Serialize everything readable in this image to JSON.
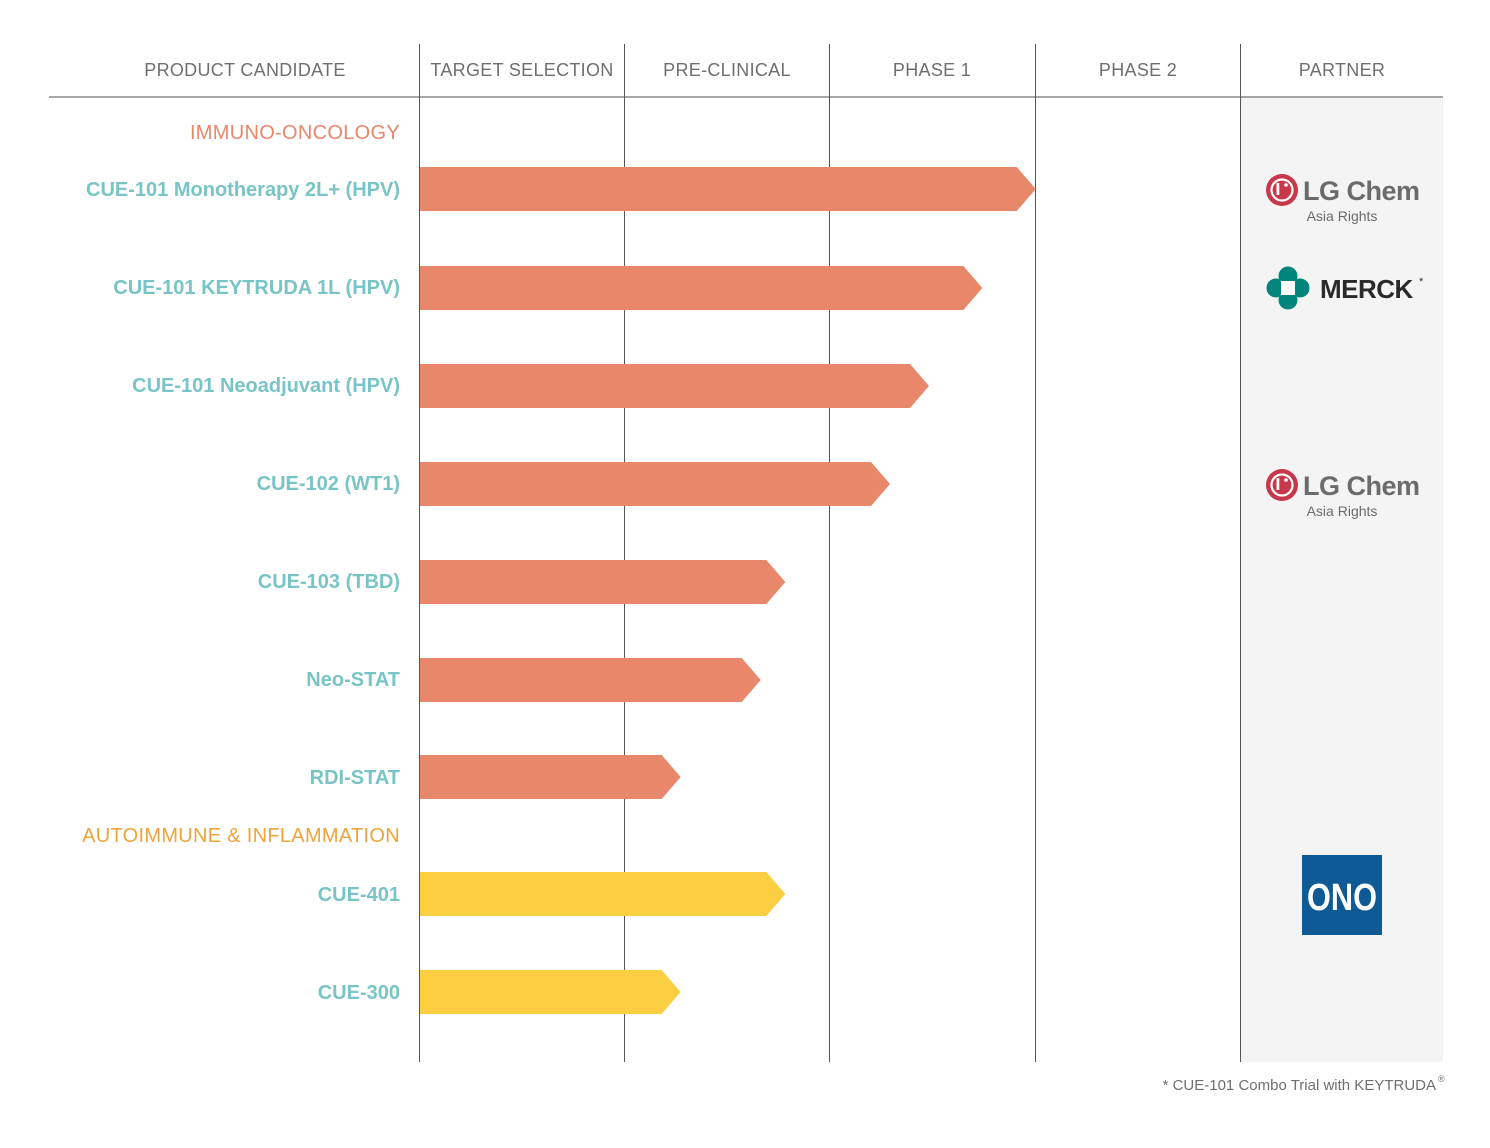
{
  "colors": {
    "immuno_oncology": "#E8876A",
    "autoimmune": "#FCCF42",
    "product_text": "#79C4C7",
    "io_label": "#E8876A",
    "ai_label": "#EDA43A",
    "partner_bg": "#F4F4F4",
    "lg_red": "#C8374A",
    "merck_teal": "#00857C",
    "ono_blue": "#0E5A96"
  },
  "chart_data": {
    "type": "bar",
    "orientation": "horizontal",
    "title": "",
    "stages": [
      "TARGET SELECTION",
      "PRE-CLINICAL",
      "PHASE 1",
      "PHASE 2"
    ],
    "xlim": [
      0,
      4
    ],
    "headers": {
      "product": "PRODUCT CANDIDATE",
      "partner": "PARTNER"
    },
    "groups": [
      {
        "label": "IMMUNO-ONCOLOGY",
        "color_key": "immuno_oncology",
        "label_color_key": "io_label",
        "items": [
          {
            "name": "CUE-101 Monotherapy 2L+ (HPV)",
            "progress": 3.0,
            "partner": "lg"
          },
          {
            "name": "CUE-101 KEYTRUDA 1L (HPV)",
            "progress": 2.74,
            "partner": "merck"
          },
          {
            "name": "CUE-101 Neoadjuvant (HPV)",
            "progress": 2.48,
            "partner": ""
          },
          {
            "name": "CUE-102 (WT1)",
            "progress": 2.29,
            "partner": "lg"
          },
          {
            "name": "CUE-103 (TBD)",
            "progress": 1.78,
            "partner": ""
          },
          {
            "name": "Neo-STAT",
            "progress": 1.66,
            "partner": ""
          },
          {
            "name": "RDI-STAT",
            "progress": 1.27,
            "partner": ""
          }
        ]
      },
      {
        "label": "AUTOIMMUNE & INFLAMMATION",
        "color_key": "autoimmune",
        "label_color_key": "ai_label",
        "items": [
          {
            "name": "CUE-401",
            "progress": 1.78,
            "partner": "ono"
          },
          {
            "name": "CUE-300",
            "progress": 1.27,
            "partner": ""
          }
        ]
      }
    ]
  },
  "partners": {
    "lg": {
      "name": "LG Chem",
      "subtitle": "Asia Rights",
      "icon": "lg-logo-icon"
    },
    "merck": {
      "name": "MERCK",
      "mark": "*",
      "icon": "merck-logo-icon"
    },
    "ono": {
      "name": "ONO",
      "icon": "ono-logo-icon"
    }
  },
  "footnote": "* CUE-101 Combo Trial with KEYTRUDA",
  "footnote_mark": "®"
}
